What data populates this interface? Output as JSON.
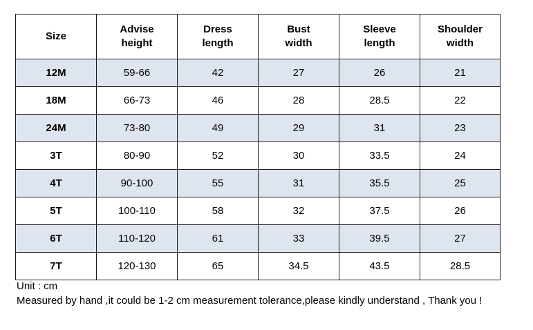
{
  "table": {
    "headers": [
      [
        "Size"
      ],
      [
        "Advise",
        "height"
      ],
      [
        "Dress",
        "length"
      ],
      [
        "Bust",
        "width"
      ],
      [
        "Sleeve",
        "length"
      ],
      [
        "Shoulder",
        "width"
      ]
    ],
    "rows": [
      [
        "12M",
        "59-66",
        "42",
        "27",
        "26",
        "21"
      ],
      [
        "18M",
        "66-73",
        "46",
        "28",
        "28.5",
        "22"
      ],
      [
        "24M",
        "73-80",
        "49",
        "29",
        "31",
        "23"
      ],
      [
        "3T",
        "80-90",
        "52",
        "30",
        "33.5",
        "24"
      ],
      [
        "4T",
        "90-100",
        "55",
        "31",
        "35.5",
        "25"
      ],
      [
        "5T",
        "100-110",
        "58",
        "32",
        "37.5",
        "26"
      ],
      [
        "6T",
        "110-120",
        "61",
        "33",
        "39.5",
        "27"
      ],
      [
        "7T",
        "120-130",
        "65",
        "34.5",
        "43.5",
        "28.5"
      ]
    ],
    "row_shading": [
      "shaded",
      "plain",
      "shaded",
      "plain",
      "shaded",
      "plain",
      "shaded",
      "plain"
    ],
    "shade_color": "#dfe5ef"
  },
  "notes": {
    "unit": "Unit : cm",
    "tolerance": "Measured by hand ,it could be 1-2 cm measurement tolerance,please kindly understand , Thank you !"
  }
}
